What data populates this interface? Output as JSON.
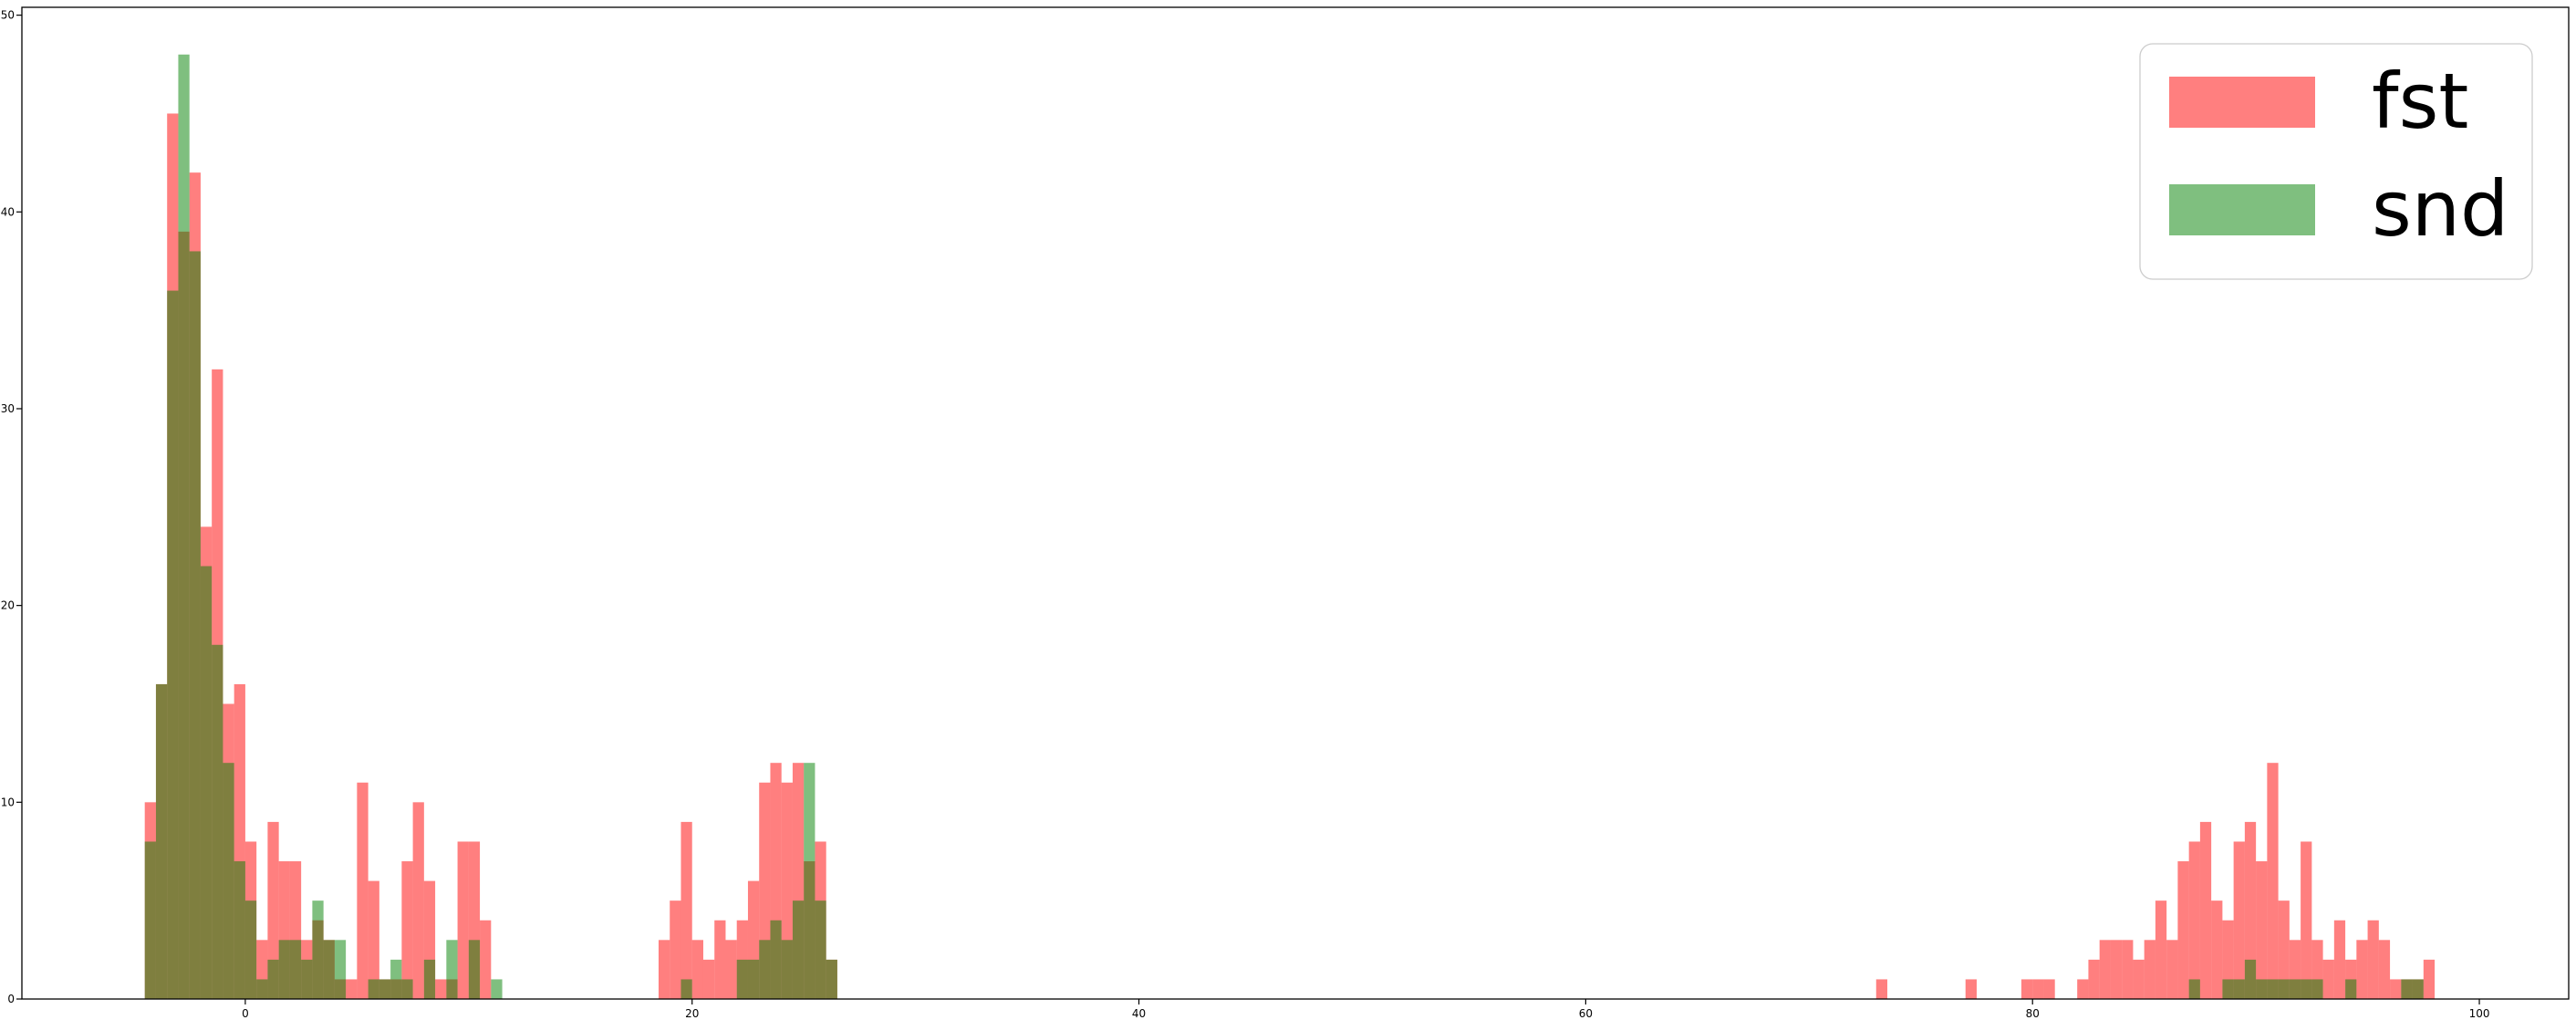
{
  "chart_data": {
    "type": "bar",
    "title": "",
    "xlabel": "",
    "ylabel": "",
    "xlim": [
      -10,
      104
    ],
    "ylim": [
      0,
      50.4
    ],
    "grid": false,
    "legend_position": "top-right",
    "bin_width": 0.5,
    "xticks": [
      {
        "v": 0,
        "label": "0"
      },
      {
        "v": 20,
        "label": "20"
      },
      {
        "v": 40,
        "label": "40"
      },
      {
        "v": 60,
        "label": "60"
      },
      {
        "v": 80,
        "label": "80"
      },
      {
        "v": 100,
        "label": "100"
      }
    ],
    "yticks": [
      {
        "v": 0,
        "label": "0"
      },
      {
        "v": 10,
        "label": "10"
      },
      {
        "v": 20,
        "label": "20"
      },
      {
        "v": 30,
        "label": "30"
      },
      {
        "v": 40,
        "label": "40"
      },
      {
        "v": 50,
        "label": "50"
      }
    ],
    "series": [
      {
        "name": "fst",
        "color": "#ff0000",
        "alpha": 0.5,
        "bins": [
          [
            -4.5,
            10
          ],
          [
            -4.0,
            16
          ],
          [
            -3.5,
            45
          ],
          [
            -3.0,
            39
          ],
          [
            -2.5,
            42
          ],
          [
            -2.0,
            24
          ],
          [
            -1.5,
            32
          ],
          [
            -1.0,
            15
          ],
          [
            -0.5,
            16
          ],
          [
            0.0,
            8
          ],
          [
            0.5,
            3
          ],
          [
            1.0,
            9
          ],
          [
            1.5,
            7
          ],
          [
            2.0,
            7
          ],
          [
            2.5,
            3
          ],
          [
            3.0,
            4
          ],
          [
            3.5,
            3
          ],
          [
            4.0,
            1
          ],
          [
            4.5,
            1
          ],
          [
            5.0,
            11
          ],
          [
            5.5,
            6
          ],
          [
            6.0,
            1
          ],
          [
            6.5,
            1
          ],
          [
            7.0,
            7
          ],
          [
            7.5,
            10
          ],
          [
            8.0,
            6
          ],
          [
            8.5,
            1
          ],
          [
            9.0,
            1
          ],
          [
            9.5,
            8
          ],
          [
            10.0,
            8
          ],
          [
            10.5,
            4
          ],
          [
            18.5,
            3
          ],
          [
            19.0,
            5
          ],
          [
            19.5,
            9
          ],
          [
            20.0,
            3
          ],
          [
            20.5,
            2
          ],
          [
            21.0,
            4
          ],
          [
            21.5,
            3
          ],
          [
            22.0,
            4
          ],
          [
            22.5,
            6
          ],
          [
            23.0,
            11
          ],
          [
            23.5,
            12
          ],
          [
            24.0,
            11
          ],
          [
            24.5,
            12
          ],
          [
            25.0,
            7
          ],
          [
            25.5,
            8
          ],
          [
            26.0,
            2
          ],
          [
            73.0,
            1
          ],
          [
            77.0,
            1
          ],
          [
            79.5,
            1
          ],
          [
            80.0,
            1
          ],
          [
            80.5,
            1
          ],
          [
            82.0,
            1
          ],
          [
            82.5,
            2
          ],
          [
            83.0,
            3
          ],
          [
            83.5,
            3
          ],
          [
            84.0,
            3
          ],
          [
            84.5,
            2
          ],
          [
            85.0,
            3
          ],
          [
            85.5,
            5
          ],
          [
            86.0,
            3
          ],
          [
            86.5,
            7
          ],
          [
            87.0,
            8
          ],
          [
            87.5,
            9
          ],
          [
            88.0,
            5
          ],
          [
            88.5,
            4
          ],
          [
            89.0,
            8
          ],
          [
            89.5,
            9
          ],
          [
            90.0,
            7
          ],
          [
            90.5,
            12
          ],
          [
            91.0,
            5
          ],
          [
            91.5,
            3
          ],
          [
            92.0,
            8
          ],
          [
            92.5,
            3
          ],
          [
            93.0,
            2
          ],
          [
            93.5,
            4
          ],
          [
            94.0,
            2
          ],
          [
            94.5,
            3
          ],
          [
            95.0,
            4
          ],
          [
            95.5,
            3
          ],
          [
            96.0,
            1
          ],
          [
            96.5,
            1
          ],
          [
            97.0,
            1
          ],
          [
            97.5,
            2
          ]
        ]
      },
      {
        "name": "snd",
        "color": "#008000",
        "alpha": 0.5,
        "bins": [
          [
            -4.5,
            8
          ],
          [
            -4.0,
            16
          ],
          [
            -3.5,
            36
          ],
          [
            -3.0,
            48
          ],
          [
            -2.5,
            38
          ],
          [
            -2.0,
            22
          ],
          [
            -1.5,
            18
          ],
          [
            -1.0,
            12
          ],
          [
            -0.5,
            7
          ],
          [
            0.0,
            5
          ],
          [
            0.5,
            1
          ],
          [
            1.0,
            2
          ],
          [
            1.5,
            3
          ],
          [
            2.0,
            3
          ],
          [
            2.5,
            2
          ],
          [
            3.0,
            5
          ],
          [
            3.5,
            3
          ],
          [
            4.0,
            3
          ],
          [
            5.5,
            1
          ],
          [
            6.0,
            1
          ],
          [
            6.5,
            2
          ],
          [
            7.0,
            1
          ],
          [
            8.0,
            2
          ],
          [
            9.0,
            3
          ],
          [
            10.0,
            3
          ],
          [
            11.0,
            1
          ],
          [
            19.5,
            1
          ],
          [
            22.0,
            2
          ],
          [
            22.5,
            2
          ],
          [
            23.0,
            3
          ],
          [
            23.5,
            4
          ],
          [
            24.0,
            3
          ],
          [
            24.5,
            5
          ],
          [
            25.0,
            12
          ],
          [
            25.5,
            5
          ],
          [
            26.0,
            2
          ],
          [
            87.0,
            1
          ],
          [
            88.5,
            1
          ],
          [
            89.0,
            1
          ],
          [
            89.5,
            2
          ],
          [
            90.0,
            1
          ],
          [
            90.5,
            1
          ],
          [
            91.0,
            1
          ],
          [
            91.5,
            1
          ],
          [
            92.0,
            1
          ],
          [
            92.5,
            1
          ],
          [
            94.0,
            1
          ],
          [
            96.5,
            1
          ],
          [
            97.0,
            1
          ]
        ]
      }
    ]
  }
}
